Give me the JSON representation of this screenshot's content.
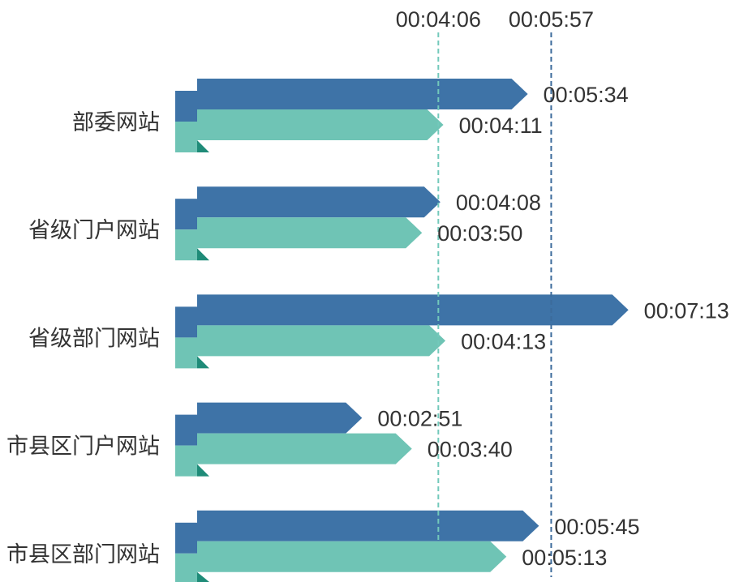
{
  "chart_data": {
    "type": "bar",
    "orientation": "horizontal",
    "categories": [
      "部委网站",
      "省级门户网站",
      "省级部门网站",
      "市县区门户网站",
      "市县区部门网站"
    ],
    "series": [
      {
        "color": "#3e73a7",
        "values": [
          "00:05:34",
          "00:04:08",
          "00:07:13",
          "00:02:51",
          "00:05:45"
        ]
      },
      {
        "color": "#6fc4b5",
        "values": [
          "00:04:11",
          "00:03:50",
          "00:04:13",
          "00:03:40",
          "00:05:13"
        ]
      }
    ],
    "reference_lines": [
      {
        "value": "00:04:06",
        "color": "#72c9bb"
      },
      {
        "value": "00:05:57",
        "color": "#3c6b9b"
      }
    ],
    "grid": false
  }
}
